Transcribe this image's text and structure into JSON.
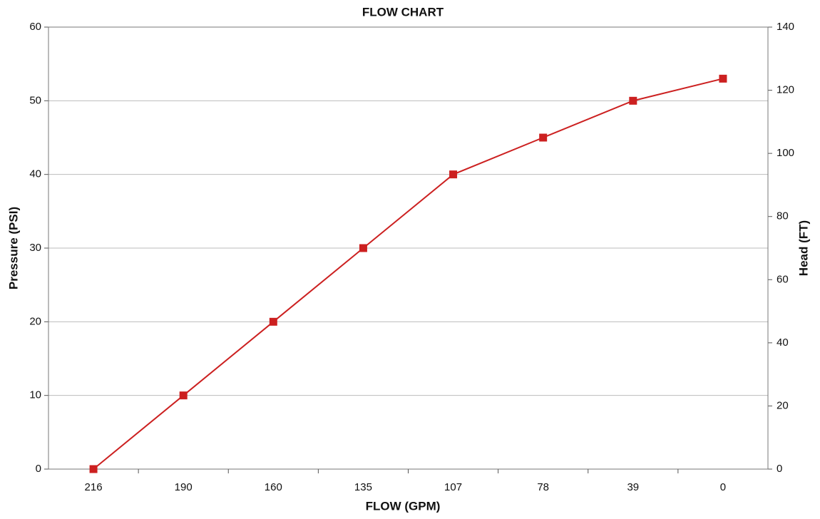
{
  "chart_data": {
    "type": "line",
    "title": "FLOW CHART",
    "x_label": "FLOW (GPM)",
    "y_label": "Pressure (PSI)",
    "y2_label": "Head (FT)",
    "categories": [
      "216",
      "190",
      "160",
      "135",
      "107",
      "78",
      "39",
      "0"
    ],
    "series": [
      {
        "color": "#cc2020",
        "values": [
          0,
          10,
          20,
          30,
          40,
          45,
          50,
          53
        ]
      }
    ],
    "ylim": [
      0,
      60
    ],
    "yticks": [
      0,
      10,
      20,
      30,
      40,
      50,
      60
    ],
    "y2lim": [
      0,
      140
    ],
    "y2ticks": [
      0,
      20,
      40,
      60,
      80,
      100,
      120,
      140
    ],
    "grid": true
  }
}
